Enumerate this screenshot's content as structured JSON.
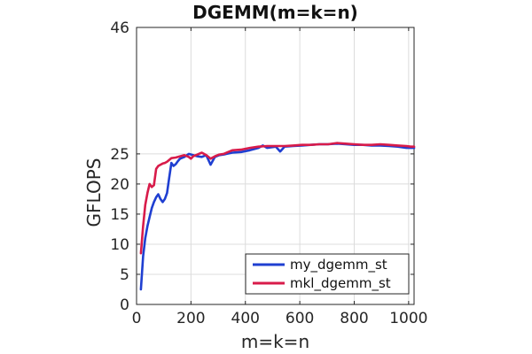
{
  "chart_data": {
    "type": "line",
    "title": "DGEMM(m=k=n)",
    "xlabel": "m=k=n",
    "ylabel": "GFLOPS",
    "xlim": [
      0,
      1020
    ],
    "ylim": [
      0,
      46
    ],
    "xticks": [
      0,
      200,
      400,
      600,
      800,
      1000
    ],
    "yticks": [
      0,
      5,
      10,
      15,
      20,
      25,
      46
    ],
    "grid": true,
    "legend_position": "bottom-right",
    "series": [
      {
        "name": "my_dgemm_st",
        "color": "#1f3fd1",
        "x": [
          16,
          24,
          32,
          40,
          48,
          56,
          64,
          72,
          80,
          88,
          96,
          104,
          112,
          120,
          128,
          136,
          144,
          152,
          160,
          176,
          192,
          208,
          224,
          240,
          256,
          272,
          288,
          304,
          320,
          352,
          384,
          416,
          448,
          464,
          480,
          512,
          528,
          544,
          576,
          608,
          640,
          672,
          704,
          736,
          768,
          800,
          832,
          864,
          896,
          928,
          960,
          992,
          1008,
          1020
        ],
        "values": [
          2.5,
          8,
          11,
          13,
          14.5,
          16,
          17,
          17.8,
          18.3,
          17.5,
          17,
          17.5,
          18.5,
          21,
          23.5,
          23,
          23.3,
          23.8,
          24.2,
          24.5,
          25,
          24.8,
          24.6,
          24.5,
          24.8,
          23.2,
          24.5,
          24.8,
          24.9,
          25.2,
          25.3,
          25.6,
          26,
          26.4,
          26,
          26.2,
          25.4,
          26.2,
          26.3,
          26.4,
          26.5,
          26.6,
          26.6,
          26.7,
          26.6,
          26.5,
          26.5,
          26.4,
          26.4,
          26.3,
          26.2,
          26,
          26,
          26
        ]
      },
      {
        "name": "mkl_dgemm_st",
        "color": "#d81b4a",
        "x": [
          16,
          24,
          32,
          40,
          48,
          56,
          64,
          72,
          80,
          88,
          96,
          104,
          112,
          120,
          128,
          144,
          160,
          176,
          192,
          200,
          208,
          224,
          240,
          256,
          272,
          288,
          304,
          320,
          352,
          384,
          416,
          448,
          480,
          512,
          544,
          576,
          608,
          640,
          672,
          704,
          736,
          768,
          800,
          832,
          864,
          896,
          928,
          960,
          992,
          1008,
          1020
        ],
        "values": [
          8.5,
          13,
          16.5,
          18.5,
          20,
          19.5,
          19.8,
          22.5,
          23,
          23.2,
          23.4,
          23.5,
          23.7,
          24,
          24.3,
          24.4,
          24.6,
          24.8,
          24.5,
          24.2,
          24.6,
          24.9,
          25.2,
          24.8,
          24.2,
          24.6,
          24.9,
          25,
          25.6,
          25.7,
          26,
          26.2,
          26.3,
          26.3,
          26.3,
          26.4,
          26.5,
          26.5,
          26.6,
          26.6,
          26.8,
          26.7,
          26.6,
          26.5,
          26.5,
          26.6,
          26.5,
          26.4,
          26.3,
          26.2,
          26.2
        ]
      }
    ]
  }
}
